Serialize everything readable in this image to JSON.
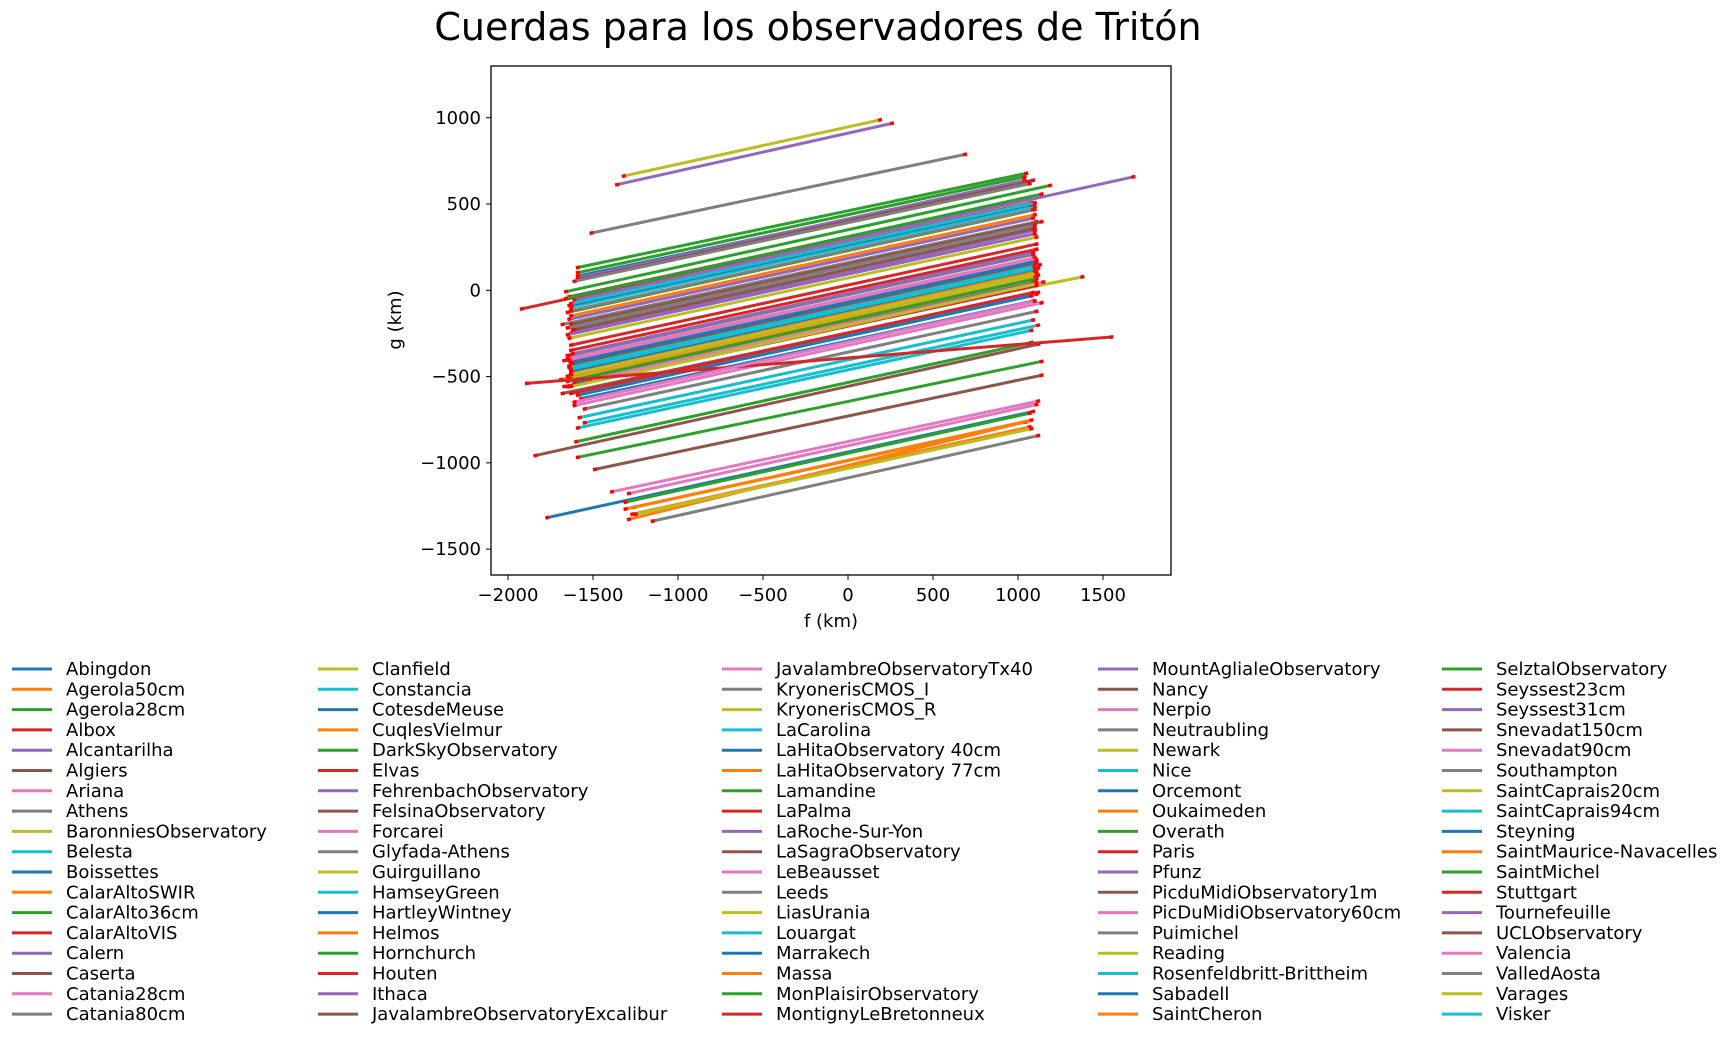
{
  "chart_data": {
    "type": "line",
    "title": "Cuerdas para los observadores de Tritón",
    "xlabel": "f (km)",
    "ylabel": "g (km)",
    "xlim": [
      -2100,
      1900
    ],
    "ylim": [
      -1650,
      1300
    ],
    "xticks": [
      -2000,
      -1500,
      -1000,
      -500,
      0,
      500,
      1000,
      1500
    ],
    "xtick_labels": [
      "−2000",
      "−1500",
      "−1000",
      "−500",
      "0",
      "500",
      "1000",
      "1500"
    ],
    "yticks": [
      -1500,
      -1000,
      -500,
      0,
      500,
      1000
    ],
    "ytick_labels": [
      "−1500",
      "−1000",
      "−500",
      "0",
      "500",
      "1000"
    ],
    "grid": false,
    "legend_position": "below plot, 6 columns",
    "palette": [
      "#1f77b4",
      "#ff7f0e",
      "#2ca02c",
      "#d62728",
      "#9467bd",
      "#8c564b",
      "#e377c2",
      "#7f7f7f",
      "#bcbd22",
      "#17becf"
    ],
    "segment_end_color": "#ff0000",
    "series": [
      {
        "name": "Abingdon",
        "x": [
          -1780,
          1100
        ],
        "y": [
          -1320,
          -700
        ]
      },
      {
        "name": "Agerola50cm",
        "x": [
          -1300,
          1050
        ],
        "y": [
          -1330,
          -760
        ]
      },
      {
        "name": "Agerola28cm",
        "x": [
          -1600,
          1150
        ],
        "y": [
          -970,
          -410
        ]
      },
      {
        "name": "Albox",
        "x": [
          -1680,
          1080
        ],
        "y": [
          -410,
          180
        ]
      },
      {
        "name": "Alcantarilha",
        "x": [
          -1640,
          1110
        ],
        "y": [
          -250,
          350
        ]
      },
      {
        "name": "Algiers",
        "x": [
          -1690,
          1130
        ],
        "y": [
          -600,
          -10
        ]
      },
      {
        "name": "Ariana",
        "x": [
          -1620,
          1150
        ],
        "y": [
          -670,
          -70
        ]
      },
      {
        "name": "Athens",
        "x": [
          -1690,
          1120
        ],
        "y": [
          -200,
          400
        ]
      },
      {
        "name": "BaronniesObservatory",
        "x": [
          -1650,
          1130
        ],
        "y": [
          -450,
          140
        ]
      },
      {
        "name": "Belesta",
        "x": [
          -1600,
          1090
        ],
        "y": [
          -800,
          -230
        ]
      },
      {
        "name": "Boissettes",
        "x": [
          -1580,
          1100
        ],
        "y": [
          -630,
          -60
        ]
      },
      {
        "name": "CalarAltoSWIR",
        "x": [
          -1700,
          1120
        ],
        "y": [
          -520,
          80
        ]
      },
      {
        "name": "CalarAlto36cm",
        "x": [
          -1600,
          1050
        ],
        "y": [
          100,
          660
        ]
      },
      {
        "name": "CalarAltoVIS",
        "x": [
          -1930,
          1000
        ],
        "y": [
          -110,
          520
        ]
      },
      {
        "name": "Calern",
        "x": [
          -1630,
          1110
        ],
        "y": [
          -230,
          360
        ]
      },
      {
        "name": "Caserta",
        "x": [
          -1680,
          1120
        ],
        "y": [
          -560,
          30
        ]
      },
      {
        "name": "Catania28cm",
        "x": [
          -1660,
          1100
        ],
        "y": [
          -380,
          210
        ]
      },
      {
        "name": "Catania80cm",
        "x": [
          -1650,
          1140
        ],
        "y": [
          -440,
          150
        ]
      },
      {
        "name": "Clanfield",
        "x": [
          -1640,
          1130
        ],
        "y": [
          -500,
          90
        ]
      },
      {
        "name": "Constancia",
        "x": [
          -1580,
          1120
        ],
        "y": [
          -470,
          110
        ]
      },
      {
        "name": "CotesdeMeuse",
        "x": [
          -1600,
          1100
        ],
        "y": [
          80,
          640
        ]
      },
      {
        "name": "CuqlesVielmur",
        "x": [
          -1280,
          1080
        ],
        "y": [
          -1300,
          -790
        ]
      },
      {
        "name": "DarkSkyObservatory",
        "x": [
          -1660,
          1110
        ],
        "y": [
          -130,
          470
        ]
      },
      {
        "name": "Elvas",
        "x": [
          -1650,
          1100
        ],
        "y": [
          -560,
          30
        ]
      },
      {
        "name": "FehrenbachObservatory",
        "x": [
          -1650,
          1100
        ],
        "y": [
          -560,
          30
        ]
      },
      {
        "name": "FelsinaObservatory",
        "x": [
          -1850,
          1130
        ],
        "y": [
          -960,
          -310
        ]
      },
      {
        "name": "Forcarei",
        "x": [
          -1600,
          1120
        ],
        "y": [
          -600,
          -20
        ]
      },
      {
        "name": "Glyfada-Athens",
        "x": [
          -1560,
          1120
        ],
        "y": [
          -690,
          -120
        ]
      },
      {
        "name": "Guirguillano",
        "x": [
          -1640,
          1110
        ],
        "y": [
          -500,
          90
        ]
      },
      {
        "name": "HamseyGreen",
        "x": [
          -1640,
          1110
        ],
        "y": [
          -100,
          490
        ]
      },
      {
        "name": "HartleyWintney",
        "x": [
          -1620,
          1120
        ],
        "y": [
          -540,
          50
        ]
      },
      {
        "name": "Helmos",
        "x": [
          -1640,
          1110
        ],
        "y": [
          -150,
          440
        ]
      },
      {
        "name": "Hornchurch",
        "x": [
          -1610,
          1090
        ],
        "y": [
          -880,
          -300
        ]
      },
      {
        "name": "Houten",
        "x": [
          -1640,
          1100
        ],
        "y": [
          -600,
          -10
        ]
      },
      {
        "name": "Ithaca",
        "x": [
          -1650,
          1100
        ],
        "y": [
          -170,
          420
        ]
      },
      {
        "name": "JavalambreObservatoryExcalibur",
        "x": [
          -1500,
          1150
        ],
        "y": [
          -1040,
          -490
        ]
      },
      {
        "name": "JavalambreObservatoryTx40",
        "x": [
          -1400,
          1130
        ],
        "y": [
          -1170,
          -640
        ]
      },
      {
        "name": "KryonerisCMOS_I",
        "x": [
          -1650,
          1100
        ],
        "y": [
          -380,
          210
        ]
      },
      {
        "name": "KryonerisCMOS_R",
        "x": [
          -1650,
          1390
        ],
        "y": [
          -520,
          80
        ]
      },
      {
        "name": "LaCarolina",
        "x": [
          -1560,
          1130
        ],
        "y": [
          -770,
          -200
        ]
      },
      {
        "name": "LaHitaObservatory 40cm",
        "x": [
          -1600,
          1090
        ],
        "y": [
          -610,
          -30
        ]
      },
      {
        "name": "LaHitaObservatory 77cm",
        "x": [
          -1640,
          1110
        ],
        "y": [
          -480,
          110
        ]
      },
      {
        "name": "Lamandine",
        "x": [
          -1600,
          1060
        ],
        "y": [
          130,
          680
        ]
      },
      {
        "name": "LaPalma",
        "x": [
          -1660,
          1120
        ],
        "y": [
          -560,
          30
        ]
      },
      {
        "name": "LaRoche-Sur-Yon",
        "x": [
          -1660,
          1110
        ],
        "y": [
          -260,
          330
        ]
      },
      {
        "name": "LaSagraObservatory",
        "x": [
          -1620,
          1100
        ],
        "y": [
          -230,
          360
        ]
      },
      {
        "name": "LeBeausset",
        "x": [
          -1660,
          1110
        ],
        "y": [
          -400,
          190
        ]
      },
      {
        "name": "Leeds",
        "x": [
          -1640,
          1100
        ],
        "y": [
          -120,
          470
        ]
      },
      {
        "name": "LiasUrania",
        "x": [
          -1330,
          200
        ],
        "y": [
          660,
          990
        ]
      },
      {
        "name": "Louargat",
        "x": [
          -1590,
          1100
        ],
        "y": [
          -740,
          -170
        ]
      },
      {
        "name": "Marrakech",
        "x": [
          -1580,
          1100
        ],
        "y": [
          -640,
          -60
        ]
      },
      {
        "name": "Massa",
        "x": [
          -1270,
          1060
        ],
        "y": [
          -1260,
          -760
        ]
      },
      {
        "name": "MonPlaisirObservatory",
        "x": [
          -1320,
          1080
        ],
        "y": [
          -1230,
          -710
        ]
      },
      {
        "name": "MontignyLeBretonneux",
        "x": [
          -1640,
          1120
        ],
        "y": [
          -350,
          240
        ]
      },
      {
        "name": "MountAglialeObservatory",
        "x": [
          -1370,
          270
        ],
        "y": [
          610,
          970
        ]
      },
      {
        "name": "Nancy",
        "x": [
          -1650,
          1080
        ],
        "y": [
          -40,
          540
        ]
      },
      {
        "name": "Nerpio",
        "x": [
          -1530,
          1160
        ],
        "y": [
          -520,
          50
        ]
      },
      {
        "name": "Neutraubling",
        "x": [
          -1520,
          700
        ],
        "y": [
          330,
          790
        ]
      },
      {
        "name": "Newark",
        "x": [
          -1260,
          1090
        ],
        "y": [
          -1300,
          -800
        ]
      },
      {
        "name": "Nice",
        "x": [
          -1640,
          1120
        ],
        "y": [
          -430,
          160
        ]
      },
      {
        "name": "Orcemont",
        "x": [
          -1650,
          1090
        ],
        "y": [
          -90,
          500
        ]
      },
      {
        "name": "Oukaimeden",
        "x": [
          -1610,
          1100
        ],
        "y": [
          -520,
          60
        ]
      },
      {
        "name": "Overath",
        "x": [
          -1670,
          1200
        ],
        "y": [
          -10,
          610
        ]
      },
      {
        "name": "Paris",
        "x": [
          -1640,
          1090
        ],
        "y": [
          -80,
          510
        ]
      },
      {
        "name": "Pfunz",
        "x": [
          -1620,
          1690
        ],
        "y": [
          -60,
          660
        ]
      },
      {
        "name": "PicduMidiObservatory1m",
        "x": [
          -1640,
          1150
        ],
        "y": [
          -200,
          400
        ]
      },
      {
        "name": "PicDuMidiObservatory60cm",
        "x": [
          -1650,
          1120
        ],
        "y": [
          -410,
          180
        ]
      },
      {
        "name": "Puimichel",
        "x": [
          -1660,
          1110
        ],
        "y": [
          -220,
          380
        ]
      },
      {
        "name": "Reading",
        "x": [
          -1640,
          1120
        ],
        "y": [
          -560,
          40
        ]
      },
      {
        "name": "Rosenfeldbritt-Brittheim",
        "x": [
          -1640,
          1110
        ],
        "y": [
          -80,
          510
        ]
      },
      {
        "name": "Sabadell",
        "x": [
          -1640,
          1130
        ],
        "y": [
          -470,
          130
        ]
      },
      {
        "name": "SaintCheron",
        "x": [
          -1660,
          1120
        ],
        "y": [
          -500,
          100
        ]
      },
      {
        "name": "SelztalObservatory",
        "x": [
          -1670,
          1150
        ],
        "y": [
          -50,
          560
        ]
      },
      {
        "name": "Seyssest23cm",
        "x": [
          -1640,
          1120
        ],
        "y": [
          -320,
          270
        ]
      },
      {
        "name": "Seyssest31cm",
        "x": [
          -1630,
          1100
        ],
        "y": [
          -370,
          220
        ]
      },
      {
        "name": "Snevadat150cm",
        "x": [
          -1630,
          1110
        ],
        "y": [
          -430,
          160
        ]
      },
      {
        "name": "Snevadat90cm",
        "x": [
          -1300,
          1120
        ],
        "y": [
          -1180,
          -660
        ]
      },
      {
        "name": "Southampton",
        "x": [
          -1160,
          1130
        ],
        "y": [
          -1340,
          -840
        ]
      },
      {
        "name": "SaintCaprais20cm",
        "x": [
          -1650,
          1120
        ],
        "y": [
          -280,
          310
        ]
      },
      {
        "name": "SaintCaprais94cm",
        "x": [
          -1650,
          1110
        ],
        "y": [
          -450,
          140
        ]
      },
      {
        "name": "Steyning",
        "x": [
          -1640,
          1120
        ],
        "y": [
          -420,
          170
        ]
      },
      {
        "name": "SaintMaurice-Navacelles",
        "x": [
          -1320,
          1090
        ],
        "y": [
          -1270,
          -750
        ]
      },
      {
        "name": "SaintMichel",
        "x": [
          -1660,
          1120
        ],
        "y": [
          -530,
          70
        ]
      },
      {
        "name": "Stuttgart",
        "x": [
          -1900,
          1560
        ],
        "y": [
          -540,
          -270
        ]
      },
      {
        "name": "Tournefeuille",
        "x": [
          -1600,
          1050
        ],
        "y": [
          70,
          640
        ]
      },
      {
        "name": "UCLObservatory",
        "x": [
          -1600,
          1070
        ],
        "y": [
          60,
          630
        ]
      },
      {
        "name": "Valencia",
        "x": [
          -1620,
          1110
        ],
        "y": [
          -650,
          -60
        ]
      },
      {
        "name": "ValledAosta",
        "x": [
          -1620,
          1080
        ],
        "y": [
          50,
          620
        ]
      },
      {
        "name": "Varages",
        "x": [
          -1640,
          1120
        ],
        "y": [
          -490,
          100
        ]
      },
      {
        "name": "Visker",
        "x": [
          -1640,
          1110
        ],
        "y": [
          -460,
          130
        ]
      }
    ]
  }
}
